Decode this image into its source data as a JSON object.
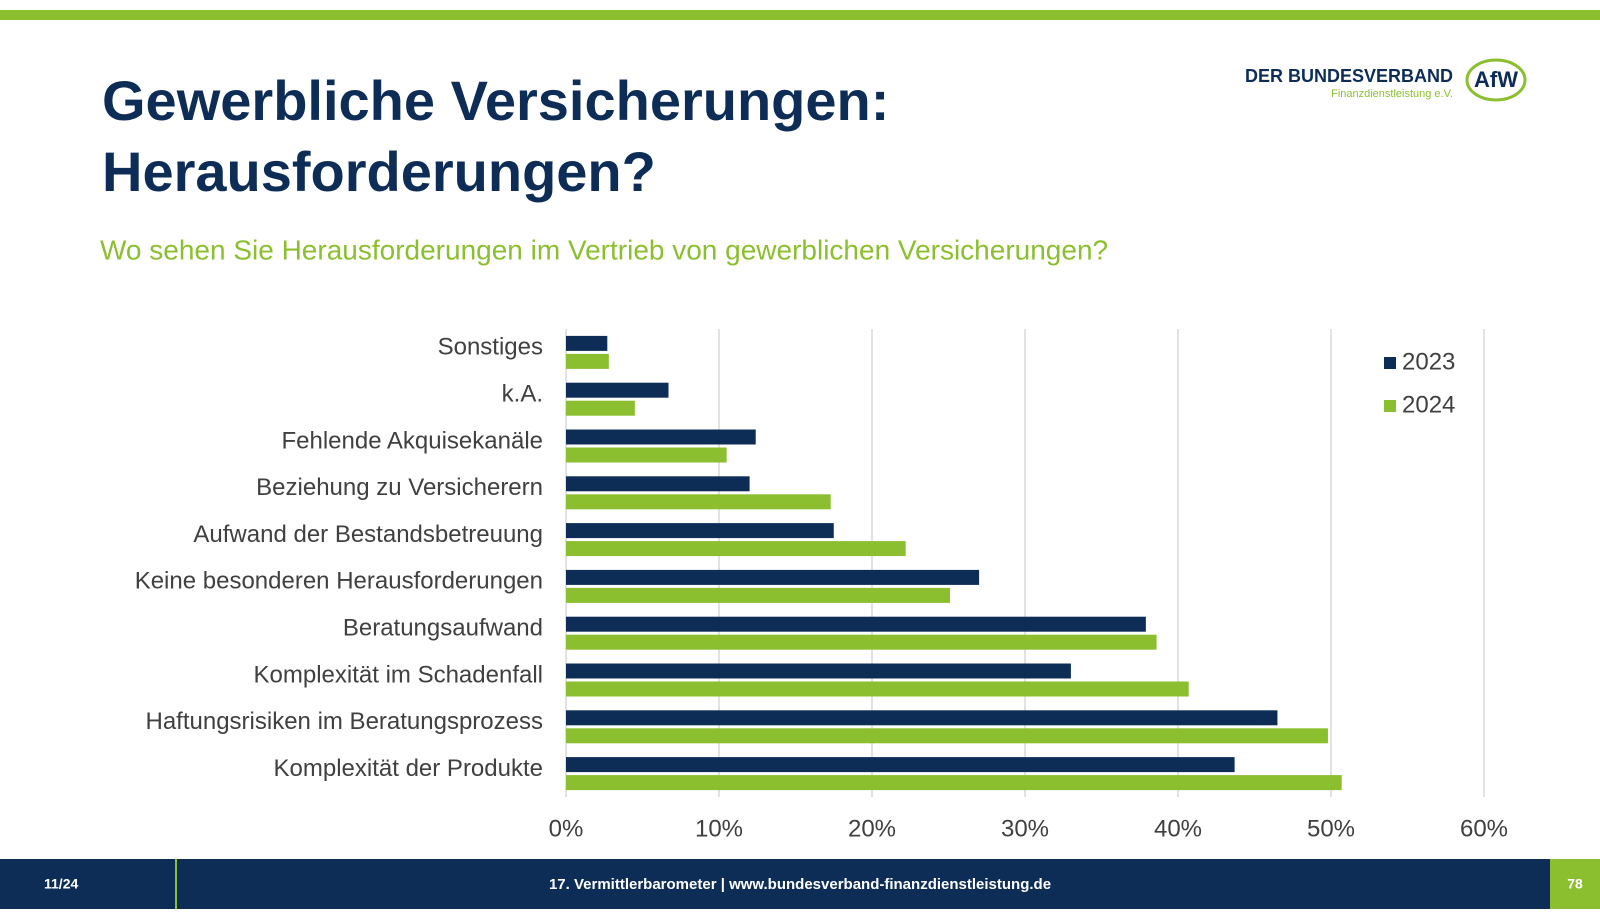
{
  "slide": {
    "title": [
      "Gewerbliche Versicherungen:",
      "Herausforderungen?"
    ],
    "subtitle": "Wo sehen Sie Herausforderungen im Vertrieb von gewerblichen Versicherungen?"
  },
  "logo": {
    "line1": "DER BUNDESVERBAND",
    "line2": "Finanzdienstleistung e.V.",
    "mark": "AfW"
  },
  "footer": {
    "page": "11/24",
    "text": "17. Vermittlerbarometer | www.bundesverband-finanzdienstleistung.de",
    "number": "78"
  },
  "chart_data": {
    "type": "hbar",
    "categories": [
      "Sonstiges",
      "k.A.",
      "Fehlende Akquisekanäle",
      "Beziehung zu Versicherern",
      "Aufwand der Bestandsbetreuung",
      "Keine besonderen Herausforderungen",
      "Beratungsaufwand",
      "Komplexität im Schadenfall",
      "Haftungsrisiken im Beratungsprozess",
      "Komplexität der Produkte"
    ],
    "series": [
      {
        "name": "2023",
        "color": "#0d2d57",
        "values": [
          2.7,
          6.7,
          12.4,
          12.0,
          17.5,
          27.0,
          37.9,
          33.0,
          46.5,
          43.7
        ]
      },
      {
        "name": "2024",
        "color": "#8cbf2f",
        "values": [
          2.8,
          4.5,
          10.5,
          17.3,
          22.2,
          25.1,
          38.6,
          40.7,
          49.8,
          50.7
        ]
      }
    ],
    "xlim": [
      0,
      60
    ],
    "xticks": [
      {
        "value": 0,
        "label": "0%"
      },
      {
        "value": 10,
        "label": "10%"
      },
      {
        "value": 20,
        "label": "20%"
      },
      {
        "value": 30,
        "label": "30%"
      },
      {
        "value": 40,
        "label": "40%"
      },
      {
        "value": 50,
        "label": "50%"
      },
      {
        "value": 60,
        "label": "60%"
      }
    ],
    "grid": true,
    "legend": "top-right"
  }
}
